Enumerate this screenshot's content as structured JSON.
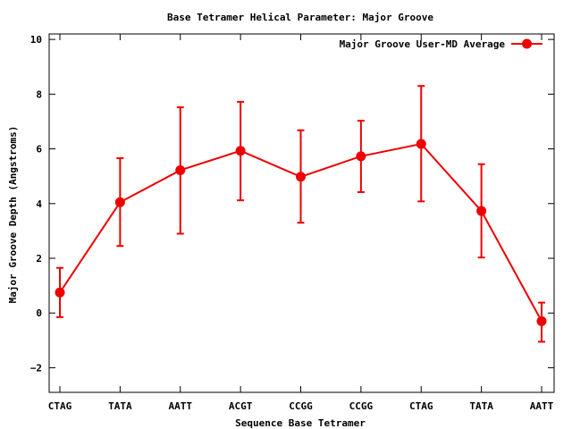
{
  "chart_data": {
    "type": "line",
    "title": "Base Tetramer Helical Parameter: Major Groove",
    "xlabel": "Sequence Base Tetramer",
    "ylabel": "Major Groove Depth (Angstroms)",
    "categories": [
      "CTAG",
      "TATA",
      "AATT",
      "ACGT",
      "CCGG",
      "CCGG",
      "CTAG",
      "TATA",
      "AATT"
    ],
    "ylim": [
      -2.9,
      10.2
    ],
    "yticks": [
      -2,
      0,
      2,
      4,
      6,
      8,
      10
    ],
    "grid": false,
    "legend_position": "top-right",
    "series": [
      {
        "name": "Major Groove User-MD Average",
        "color": "#ee0000",
        "values": [
          0.75,
          4.05,
          5.22,
          5.93,
          4.98,
          5.73,
          6.18,
          3.73,
          -0.3
        ],
        "error_low": [
          -0.15,
          2.45,
          2.9,
          4.12,
          3.3,
          4.42,
          4.08,
          2.03,
          -1.05
        ],
        "error_high": [
          1.65,
          5.66,
          7.52,
          7.72,
          6.68,
          7.03,
          8.3,
          5.44,
          0.38
        ]
      }
    ]
  }
}
